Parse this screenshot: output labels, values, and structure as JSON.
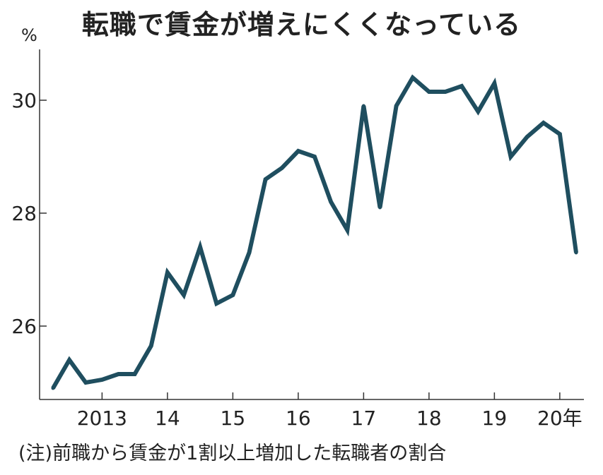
{
  "chart_data": {
    "type": "line",
    "title": "転職で賃金が増えにくくなっている",
    "ylabel": "%",
    "xlabel": "",
    "note": "(注)前職から賃金が1割以上増加した転職者の割合",
    "ylim": [
      24.7,
      30.9
    ],
    "yticks": [
      26,
      28,
      30
    ],
    "xlim": [
      2012.5,
      2020.5
    ],
    "x_tick_labels": [
      {
        "x": 2013,
        "label": "2013"
      },
      {
        "x": 2014,
        "label": "14"
      },
      {
        "x": 2015,
        "label": "15"
      },
      {
        "x": 2016,
        "label": "16"
      },
      {
        "x": 2017,
        "label": "17"
      },
      {
        "x": 2018,
        "label": "18"
      },
      {
        "x": 2019,
        "label": "19"
      },
      {
        "x": 2020,
        "label": "20年"
      }
    ],
    "color": "#1f4e5f",
    "series": [
      {
        "x": [
          2012.25,
          2012.5,
          2012.75,
          2013.0,
          2013.25,
          2013.5,
          2013.75,
          2014.0,
          2014.25,
          2014.5,
          2014.75,
          2015.0,
          2015.25,
          2015.5,
          2015.75,
          2016.0,
          2016.25,
          2016.5,
          2016.75,
          2017.0,
          2017.25,
          2017.5,
          2017.75,
          2018.0,
          2018.25,
          2018.5,
          2018.75,
          2019.0,
          2019.25,
          2019.5,
          2019.75,
          2020.0,
          2020.25
        ],
        "y": [
          24.9,
          25.4,
          25.0,
          25.05,
          25.15,
          25.15,
          25.65,
          26.95,
          26.55,
          27.4,
          26.4,
          26.55,
          27.3,
          28.6,
          28.8,
          29.1,
          29.0,
          28.2,
          27.7,
          29.9,
          28.1,
          29.9,
          30.4,
          30.15,
          30.15,
          30.25,
          29.8,
          30.3,
          29.0,
          29.35,
          29.6,
          29.4,
          27.3
        ]
      }
    ]
  }
}
